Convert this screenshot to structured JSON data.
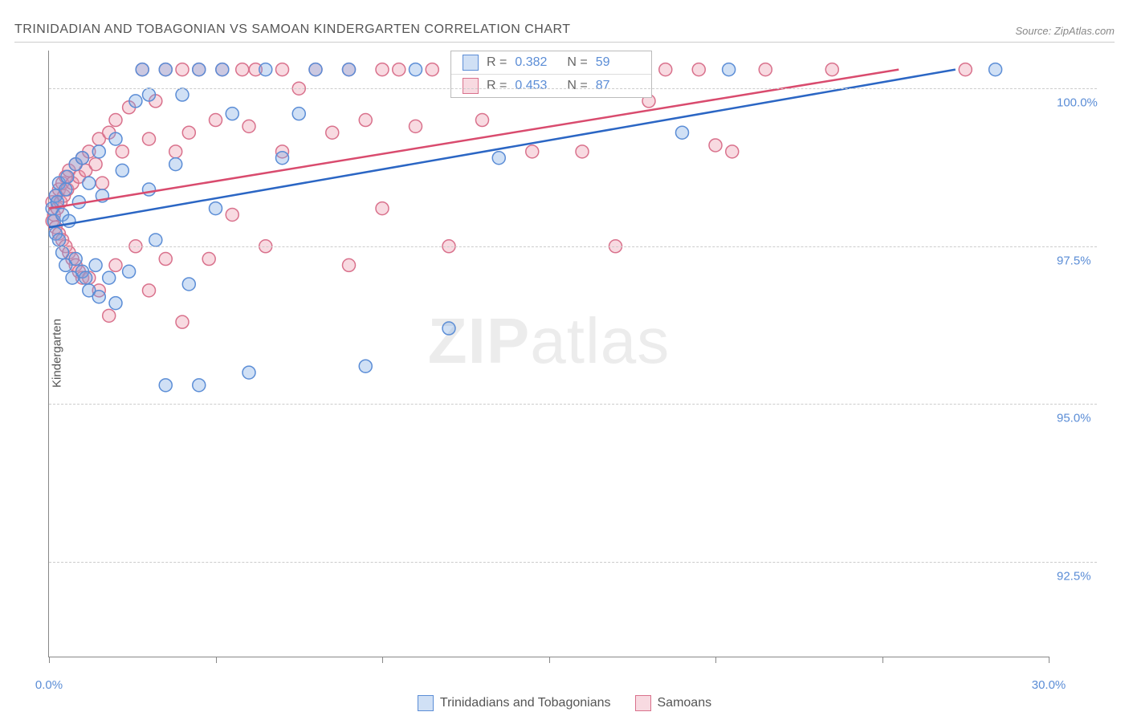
{
  "title": "TRINIDADIAN AND TOBAGONIAN VS SAMOAN KINDERGARTEN CORRELATION CHART",
  "source": "Source: ZipAtlas.com",
  "ylabel": "Kindergarten",
  "watermark_a": "ZIP",
  "watermark_b": "atlas",
  "chart": {
    "type": "scatter",
    "xlim": [
      0,
      30
    ],
    "ylim": [
      91.0,
      100.6
    ],
    "xtick_major": [
      0,
      5,
      10,
      15,
      20,
      25,
      30
    ],
    "xtick_labels_shown": {
      "0": "0.0%",
      "30": "30.0%"
    },
    "ytick": [
      92.5,
      95.0,
      97.5,
      100.0
    ],
    "ytick_labels": [
      "92.5%",
      "95.0%",
      "97.5%",
      "100.0%"
    ],
    "background_color": "#ffffff",
    "grid_color": "#cccccc",
    "axis_color": "#888888",
    "marker_radius": 8,
    "marker_stroke_width": 1.5,
    "line_width": 2.5,
    "series": [
      {
        "name": "Trinidadians and Tobagonians",
        "fill": "rgba(120,165,225,0.35)",
        "stroke": "#5b8dd6",
        "line_color": "#2b66c4",
        "R": 0.382,
        "N": 59,
        "regression": {
          "x1": 0,
          "y1": 97.8,
          "x2": 27.2,
          "y2": 100.3
        },
        "points": [
          [
            0.1,
            98.1
          ],
          [
            0.15,
            97.9
          ],
          [
            0.2,
            98.3
          ],
          [
            0.2,
            97.7
          ],
          [
            0.25,
            98.2
          ],
          [
            0.3,
            98.5
          ],
          [
            0.3,
            97.6
          ],
          [
            0.4,
            98.0
          ],
          [
            0.4,
            97.4
          ],
          [
            0.5,
            98.4
          ],
          [
            0.5,
            97.2
          ],
          [
            0.55,
            98.6
          ],
          [
            0.6,
            97.9
          ],
          [
            0.7,
            97.0
          ],
          [
            0.8,
            98.8
          ],
          [
            0.8,
            97.3
          ],
          [
            0.9,
            98.2
          ],
          [
            1.0,
            97.1
          ],
          [
            1.0,
            98.9
          ],
          [
            1.1,
            97.0
          ],
          [
            1.2,
            96.8
          ],
          [
            1.2,
            98.5
          ],
          [
            1.4,
            97.2
          ],
          [
            1.5,
            99.0
          ],
          [
            1.5,
            96.7
          ],
          [
            1.6,
            98.3
          ],
          [
            1.8,
            97.0
          ],
          [
            2.0,
            99.2
          ],
          [
            2.0,
            96.6
          ],
          [
            2.2,
            98.7
          ],
          [
            2.4,
            97.1
          ],
          [
            2.6,
            99.8
          ],
          [
            2.8,
            100.3
          ],
          [
            3.0,
            98.4
          ],
          [
            3.0,
            99.9
          ],
          [
            3.2,
            97.6
          ],
          [
            3.5,
            100.3
          ],
          [
            3.5,
            95.3
          ],
          [
            3.8,
            98.8
          ],
          [
            4.0,
            99.9
          ],
          [
            4.2,
            96.9
          ],
          [
            4.5,
            100.3
          ],
          [
            4.5,
            95.3
          ],
          [
            5.0,
            98.1
          ],
          [
            5.2,
            100.3
          ],
          [
            5.5,
            99.6
          ],
          [
            6.0,
            95.5
          ],
          [
            6.5,
            100.3
          ],
          [
            7.0,
            98.9
          ],
          [
            7.5,
            99.6
          ],
          [
            8.0,
            100.3
          ],
          [
            9.0,
            100.3
          ],
          [
            9.5,
            95.6
          ],
          [
            11.0,
            100.3
          ],
          [
            12.0,
            96.2
          ],
          [
            13.5,
            98.9
          ],
          [
            19.0,
            99.3
          ],
          [
            20.4,
            100.3
          ],
          [
            28.4,
            100.3
          ]
        ]
      },
      {
        "name": "Samoans",
        "fill": "rgba(235,150,170,0.35)",
        "stroke": "#d9718c",
        "line_color": "#d94b6e",
        "R": 0.453,
        "N": 87,
        "regression": {
          "x1": 0,
          "y1": 98.1,
          "x2": 25.5,
          "y2": 100.3
        },
        "points": [
          [
            0.1,
            98.2
          ],
          [
            0.1,
            97.9
          ],
          [
            0.15,
            98.0
          ],
          [
            0.2,
            98.3
          ],
          [
            0.2,
            97.8
          ],
          [
            0.25,
            98.1
          ],
          [
            0.3,
            98.4
          ],
          [
            0.3,
            97.7
          ],
          [
            0.35,
            98.2
          ],
          [
            0.4,
            98.5
          ],
          [
            0.4,
            97.6
          ],
          [
            0.45,
            98.3
          ],
          [
            0.5,
            98.6
          ],
          [
            0.5,
            97.5
          ],
          [
            0.55,
            98.4
          ],
          [
            0.6,
            98.7
          ],
          [
            0.6,
            97.4
          ],
          [
            0.7,
            98.5
          ],
          [
            0.7,
            97.3
          ],
          [
            0.8,
            98.8
          ],
          [
            0.8,
            97.2
          ],
          [
            0.9,
            98.6
          ],
          [
            0.9,
            97.1
          ],
          [
            1.0,
            98.9
          ],
          [
            1.0,
            97.0
          ],
          [
            1.1,
            98.7
          ],
          [
            1.2,
            99.0
          ],
          [
            1.2,
            97.0
          ],
          [
            1.4,
            98.8
          ],
          [
            1.5,
            99.2
          ],
          [
            1.5,
            96.8
          ],
          [
            1.6,
            98.5
          ],
          [
            1.8,
            99.3
          ],
          [
            1.8,
            96.4
          ],
          [
            2.0,
            99.5
          ],
          [
            2.0,
            97.2
          ],
          [
            2.2,
            99.0
          ],
          [
            2.4,
            99.7
          ],
          [
            2.6,
            97.5
          ],
          [
            2.8,
            100.3
          ],
          [
            3.0,
            99.2
          ],
          [
            3.0,
            96.8
          ],
          [
            3.2,
            99.8
          ],
          [
            3.5,
            100.3
          ],
          [
            3.5,
            97.3
          ],
          [
            3.8,
            99.0
          ],
          [
            4.0,
            100.3
          ],
          [
            4.0,
            96.3
          ],
          [
            4.2,
            99.3
          ],
          [
            4.5,
            100.3
          ],
          [
            4.8,
            97.3
          ],
          [
            5.0,
            99.5
          ],
          [
            5.2,
            100.3
          ],
          [
            5.5,
            98.0
          ],
          [
            5.8,
            100.3
          ],
          [
            6.0,
            99.4
          ],
          [
            6.2,
            100.3
          ],
          [
            6.5,
            97.5
          ],
          [
            7.0,
            100.3
          ],
          [
            7.0,
            99.0
          ],
          [
            7.5,
            100.0
          ],
          [
            8.0,
            100.3
          ],
          [
            8.5,
            99.3
          ],
          [
            9.0,
            100.3
          ],
          [
            9.0,
            97.2
          ],
          [
            9.5,
            99.5
          ],
          [
            10.0,
            100.3
          ],
          [
            10.0,
            98.1
          ],
          [
            10.5,
            100.3
          ],
          [
            11.0,
            99.4
          ],
          [
            11.5,
            100.3
          ],
          [
            12.0,
            97.5
          ],
          [
            12.5,
            100.3
          ],
          [
            13.0,
            99.5
          ],
          [
            13.5,
            100.3
          ],
          [
            14.5,
            99.0
          ],
          [
            15.0,
            100.3
          ],
          [
            16.0,
            99.0
          ],
          [
            17.0,
            97.5
          ],
          [
            18.0,
            99.8
          ],
          [
            18.5,
            100.3
          ],
          [
            19.5,
            100.3
          ],
          [
            20.0,
            99.1
          ],
          [
            20.5,
            99.0
          ],
          [
            21.5,
            100.3
          ],
          [
            23.5,
            100.3
          ],
          [
            27.5,
            100.3
          ]
        ]
      }
    ]
  },
  "legend_top": {
    "r_label": "R =",
    "n_label": "N ="
  },
  "legend_bottom": [
    {
      "label": "Trinidadians and Tobagonians"
    },
    {
      "label": "Samoans"
    }
  ]
}
